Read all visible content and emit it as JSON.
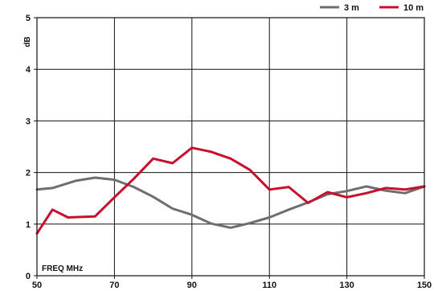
{
  "chart_data": {
    "type": "line",
    "title": "",
    "xlabel": "FREQ MHz",
    "ylabel": "dB",
    "xlim": [
      50,
      150
    ],
    "ylim": [
      0,
      5
    ],
    "x_ticks": [
      50,
      70,
      90,
      110,
      130,
      150
    ],
    "y_ticks": [
      0,
      1,
      2,
      3,
      4,
      5
    ],
    "grid": true,
    "legend_position": "top-right",
    "series": [
      {
        "name": "3 m",
        "color": "#6e6e6e",
        "x": [
          50,
          54,
          60,
          65,
          70,
          75,
          80,
          85,
          90,
          95,
          100,
          105,
          110,
          115,
          120,
          125,
          130,
          135,
          140,
          145,
          150
        ],
        "y": [
          1.67,
          1.7,
          1.84,
          1.9,
          1.86,
          1.72,
          1.53,
          1.3,
          1.18,
          1.01,
          0.93,
          1.02,
          1.13,
          1.28,
          1.42,
          1.58,
          1.64,
          1.73,
          1.65,
          1.6,
          1.73
        ]
      },
      {
        "name": "10 m",
        "color": "#c8102e",
        "x": [
          50,
          54,
          58,
          62,
          65,
          70,
          75,
          80,
          85,
          90,
          95,
          100,
          105,
          110,
          115,
          120,
          125,
          130,
          135,
          140,
          145,
          150
        ],
        "y": [
          0.82,
          1.28,
          1.13,
          1.14,
          1.15,
          1.52,
          1.88,
          2.27,
          2.18,
          2.48,
          2.4,
          2.27,
          2.05,
          1.67,
          1.72,
          1.41,
          1.62,
          1.52,
          1.6,
          1.7,
          1.67,
          1.73
        ]
      }
    ]
  }
}
